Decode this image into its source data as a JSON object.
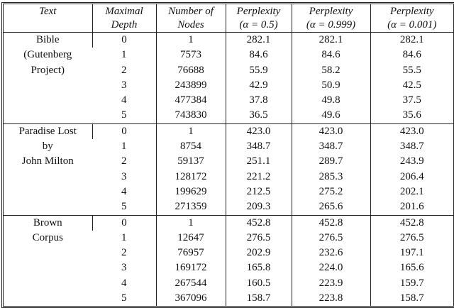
{
  "table": {
    "headers": [
      [
        "Text",
        ""
      ],
      [
        "Maximal",
        "Depth"
      ],
      [
        "Number of",
        "Nodes"
      ],
      [
        "Perplexity",
        "(α = 0.5)"
      ],
      [
        "Perplexity",
        "(α = 0.999)"
      ],
      [
        "Perplexity",
        "(α = 0.001)"
      ]
    ],
    "groups": [
      {
        "label": [
          "Bible",
          "(Gutenberg",
          "Project)"
        ],
        "rows": [
          [
            "0",
            "1",
            "282.1",
            "282.1",
            "282.1"
          ],
          [
            "1",
            "7573",
            "84.6",
            "84.6",
            "84.6"
          ],
          [
            "2",
            "76688",
            "55.9",
            "58.2",
            "55.5"
          ],
          [
            "3",
            "243899",
            "42.9",
            "50.9",
            "42.5"
          ],
          [
            "4",
            "477384",
            "37.8",
            "49.8",
            "37.5"
          ],
          [
            "5",
            "743830",
            "36.5",
            "49.6",
            "35.6"
          ]
        ]
      },
      {
        "label": [
          "Paradise Lost",
          "by",
          "John Milton"
        ],
        "rows": [
          [
            "0",
            "1",
            "423.0",
            "423.0",
            "423.0"
          ],
          [
            "1",
            "8754",
            "348.7",
            "348.7",
            "348.7"
          ],
          [
            "2",
            "59137",
            "251.1",
            "289.7",
            "243.9"
          ],
          [
            "3",
            "128172",
            "221.2",
            "285.3",
            "206.4"
          ],
          [
            "4",
            "199629",
            "212.5",
            "275.2",
            "202.1"
          ],
          [
            "5",
            "271359",
            "209.3",
            "265.6",
            "201.6"
          ]
        ]
      },
      {
        "label": [
          "Brown",
          "Corpus"
        ],
        "rows": [
          [
            "0",
            "1",
            "452.8",
            "452.8",
            "452.8"
          ],
          [
            "1",
            "12647",
            "276.5",
            "276.5",
            "276.5"
          ],
          [
            "2",
            "76957",
            "202.9",
            "232.6",
            "197.1"
          ],
          [
            "3",
            "169172",
            "165.8",
            "224.0",
            "165.6"
          ],
          [
            "4",
            "267544",
            "160.5",
            "223.9",
            "159.7"
          ],
          [
            "5",
            "367096",
            "158.7",
            "223.8",
            "158.7"
          ]
        ]
      }
    ]
  }
}
